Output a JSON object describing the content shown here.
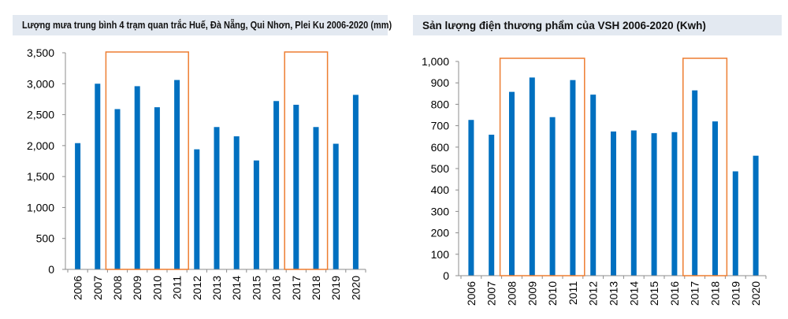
{
  "chart_data": [
    {
      "type": "bar",
      "title": "Lượng mưa trung bình 4 trạm quan trắc Huế, Đà Nẵng, Qui Nhơn, Plei Ku 2006-2020 (mm)",
      "xlabel": "",
      "ylabel": "",
      "categories": [
        "2006",
        "2007",
        "2008",
        "2009",
        "2010",
        "2011",
        "2012",
        "2013",
        "2014",
        "2015",
        "2016",
        "2017",
        "2018",
        "2019",
        "2020"
      ],
      "values": [
        2040,
        3000,
        2590,
        2960,
        2620,
        3060,
        1940,
        2300,
        2150,
        1760,
        2720,
        2660,
        2300,
        2030,
        2820
      ],
      "ylim": [
        0,
        3500
      ],
      "yticks": [
        0,
        500,
        1000,
        1500,
        2000,
        2500,
        3000,
        3500
      ],
      "ytick_labels": [
        "0",
        "500",
        "1,000",
        "1,500",
        "2,000",
        "2,500",
        "3,000",
        "3,500"
      ],
      "bar_color": "#0070c0",
      "highlight_color": "#ed7d31",
      "highlight_ranges": [
        [
          "2008",
          "2011"
        ],
        [
          "2017",
          "2018"
        ]
      ],
      "grid": false
    },
    {
      "type": "bar",
      "title": "Sản lượng điện thương phẩm của VSH 2006-2020 (Kwh)",
      "xlabel": "",
      "ylabel": "",
      "categories": [
        "2006",
        "2007",
        "2008",
        "2009",
        "2010",
        "2011",
        "2012",
        "2013",
        "2014",
        "2015",
        "2016",
        "2017",
        "2018",
        "2019",
        "2020"
      ],
      "values": [
        727,
        658,
        858,
        925,
        740,
        913,
        845,
        673,
        678,
        665,
        670,
        865,
        720,
        487,
        560
      ],
      "ylim": [
        0,
        1000
      ],
      "yticks": [
        0,
        100,
        200,
        300,
        400,
        500,
        600,
        700,
        800,
        900,
        1000
      ],
      "ytick_labels": [
        "0",
        "100",
        "200",
        "300",
        "400",
        "500",
        "600",
        "700",
        "800",
        "900",
        "1,000"
      ],
      "bar_color": "#0070c0",
      "highlight_color": "#ed7d31",
      "highlight_ranges": [
        [
          "2008",
          "2011"
        ],
        [
          "2017",
          "2018"
        ]
      ],
      "grid": false
    }
  ]
}
